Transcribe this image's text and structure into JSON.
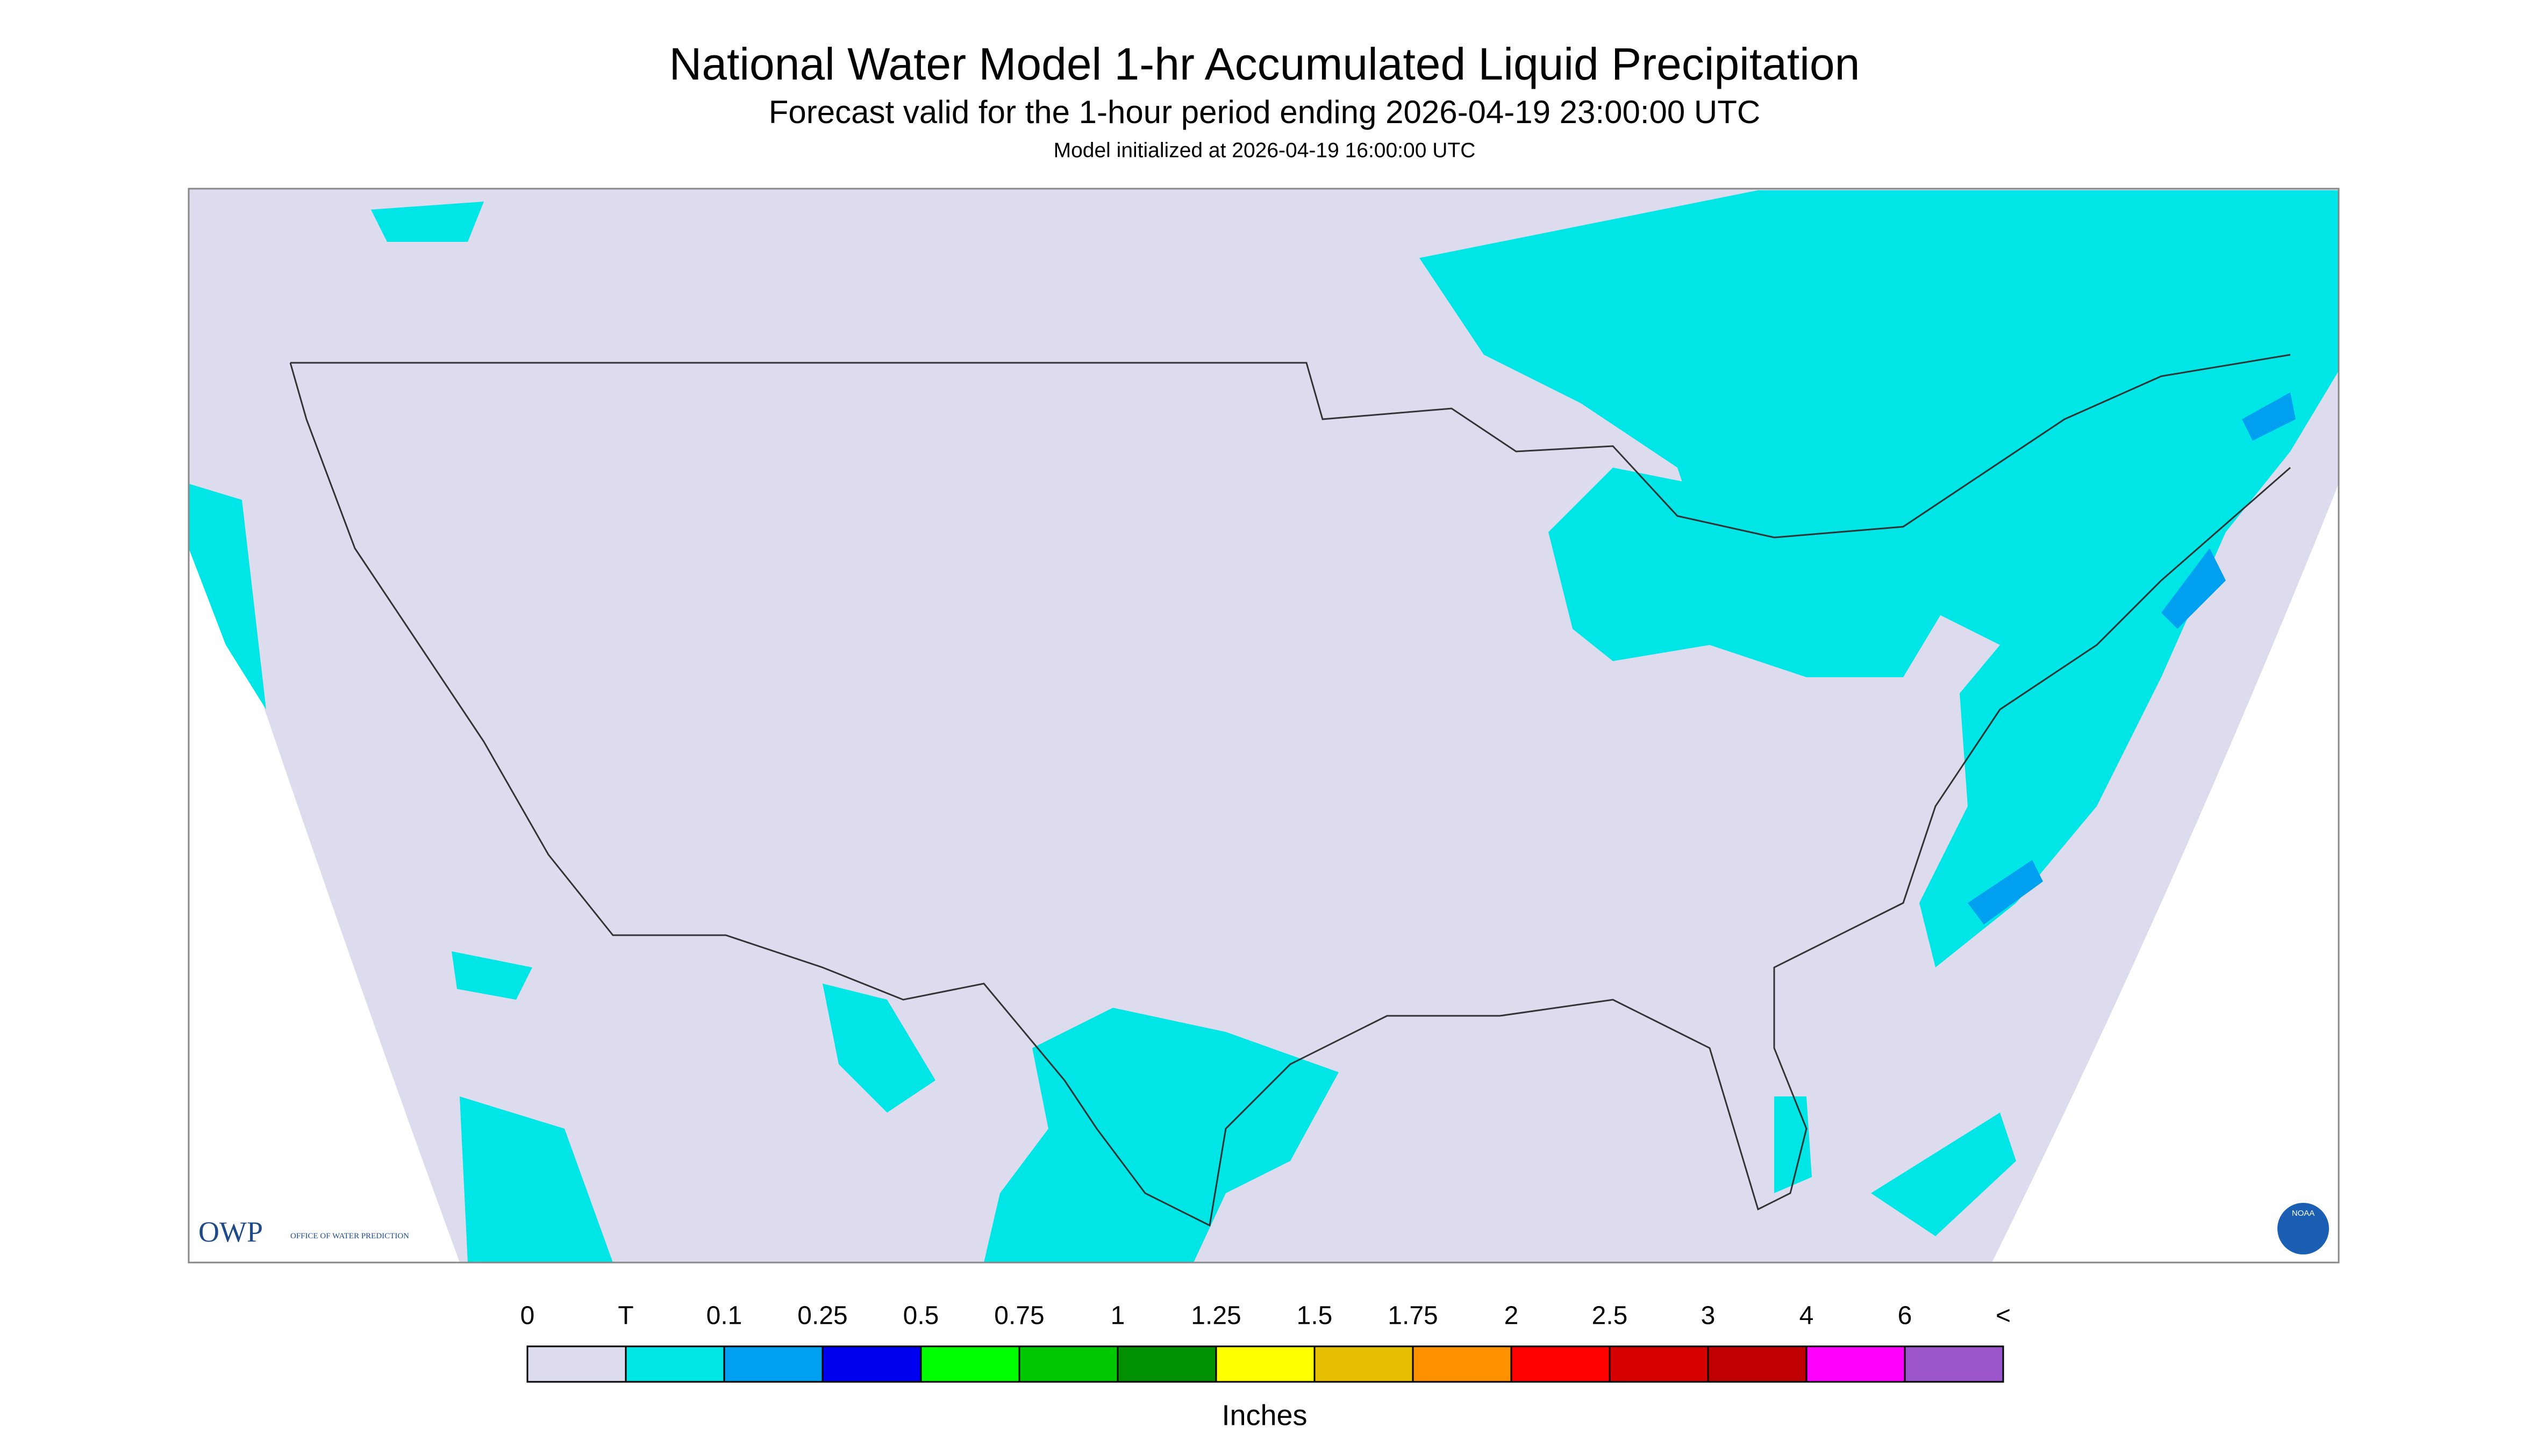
{
  "header": {
    "title": "National Water Model 1-hr Accumulated Liquid Precipitation",
    "subtitle": "Forecast valid for the 1-hour period ending 2026-04-19 23:00:00 UTC",
    "init": "Model initialized at 2026-04-19 16:00:00 UTC"
  },
  "legend": {
    "labels": [
      "0",
      "T",
      "0.1",
      "0.25",
      "0.5",
      "0.75",
      "1",
      "1.25",
      "1.5",
      "1.75",
      "2",
      "2.5",
      "3",
      "4",
      "6",
      "<"
    ],
    "colors": [
      "#dcdcee",
      "#00e5e5",
      "#00a0f0",
      "#0000f0",
      "#00ff00",
      "#00c800",
      "#009000",
      "#ffff00",
      "#e6c000",
      "#ff9000",
      "#ff0000",
      "#d60000",
      "#c00000",
      "#ff00ff",
      "#9955c9"
    ],
    "unit": "Inches"
  },
  "logos": {
    "owp": "OWP",
    "owp_text": "OFFICE OF WATER PREDICTION",
    "noaa": "NOAA"
  }
}
